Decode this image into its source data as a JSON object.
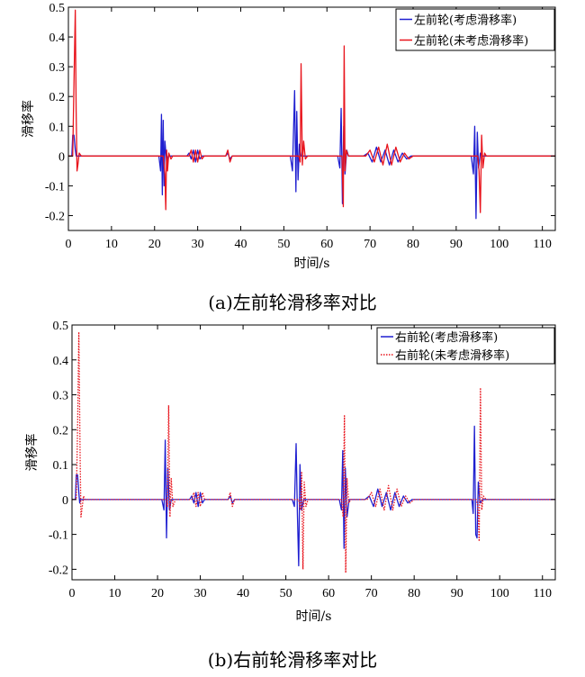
{
  "chart_data": [
    {
      "type": "line",
      "caption": "(a)左前轮滑移率对比",
      "xlabel": "时间/s",
      "ylabel": "滑移率",
      "xlim": [
        0,
        113
      ],
      "ylim": [
        -0.25,
        0.5
      ],
      "xticks": [
        0,
        10,
        20,
        30,
        40,
        50,
        60,
        70,
        80,
        90,
        100,
        110
      ],
      "yticks": [
        -0.2,
        -0.1,
        0,
        0.1,
        0.2,
        0.3,
        0.4,
        0.5
      ],
      "ytick_labels": [
        "-0.2",
        "-0.1",
        "0",
        "0.1",
        "0.2",
        "0.3",
        "0.4",
        "0.5"
      ],
      "grid": false,
      "legend_position": "top-right",
      "series": [
        {
          "name": "左前轮(考虑滑移率)",
          "color": "#1f1fd0",
          "style": "solid",
          "x": [
            0,
            0.8,
            1.0,
            1.3,
            1.6,
            1.8,
            2.0,
            2.5,
            3.0,
            21.0,
            21.4,
            21.6,
            21.8,
            22.0,
            22.2,
            22.4,
            22.8,
            23.2,
            27.5,
            28.0,
            28.5,
            29.0,
            29.5,
            30.0,
            30.5,
            31.0,
            36.5,
            37.0,
            37.5,
            38.0,
            51.5,
            52.0,
            52.5,
            52.8,
            53.0,
            53.3,
            53.6,
            54.0,
            55.0,
            62.5,
            63.0,
            63.3,
            63.6,
            63.9,
            64.2,
            64.6,
            65.0,
            68.5,
            69.5,
            70.5,
            71.5,
            72.5,
            73.5,
            74.5,
            75.5,
            76.5,
            77.5,
            78.5,
            79.5,
            93.5,
            94.0,
            94.3,
            94.6,
            94.9,
            95.2,
            95.6,
            96.0,
            113
          ],
          "y": [
            0,
            0,
            0.07,
            0.07,
            0.02,
            0,
            0,
            0,
            0,
            0,
            -0.05,
            0.14,
            -0.13,
            0.12,
            -0.1,
            0.05,
            -0.02,
            0,
            0,
            0.01,
            -0.01,
            0.02,
            -0.02,
            0.02,
            -0.01,
            0,
            0,
            0.01,
            -0.01,
            0,
            0,
            -0.05,
            0.22,
            -0.12,
            0.15,
            -0.08,
            0.04,
            0,
            0,
            0,
            -0.04,
            0.16,
            -0.16,
            0.1,
            -0.06,
            0.02,
            0,
            0,
            0.01,
            -0.02,
            0.03,
            -0.02,
            0.02,
            -0.03,
            0.02,
            -0.02,
            0.01,
            -0.01,
            0,
            0,
            -0.06,
            0.1,
            -0.21,
            0.08,
            -0.04,
            0.01,
            0,
            0
          ]
        },
        {
          "name": "左前轮(未考虑滑移率)",
          "color": "#e8141c",
          "style": "solid",
          "x": [
            0,
            1.0,
            1.3,
            1.6,
            1.8,
            2.0,
            2.2,
            2.5,
            3.0,
            4.0,
            22.0,
            22.4,
            22.6,
            22.8,
            23.0,
            23.3,
            23.8,
            24.2,
            28.0,
            28.5,
            29.0,
            29.5,
            30.0,
            30.5,
            31.0,
            31.5,
            36.5,
            37.0,
            37.5,
            38.0,
            53.5,
            53.8,
            54.0,
            54.3,
            54.6,
            55.0,
            55.5,
            63.5,
            63.8,
            64.0,
            64.2,
            64.5,
            65.0,
            69.0,
            70.0,
            71.0,
            72.0,
            73.0,
            74.0,
            75.0,
            76.0,
            77.0,
            78.0,
            79.0,
            80.0,
            95.0,
            95.3,
            95.6,
            95.9,
            96.2,
            96.6,
            97.0,
            113
          ],
          "y": [
            0,
            0,
            0.25,
            0.49,
            0.15,
            -0.05,
            -0.03,
            0.01,
            0,
            0,
            0,
            -0.06,
            -0.18,
            0.02,
            -0.05,
            0.01,
            -0.01,
            0,
            0,
            0.02,
            -0.02,
            0.02,
            -0.02,
            0.02,
            -0.01,
            0,
            0,
            0.02,
            -0.02,
            0,
            0,
            -0.02,
            0.31,
            -0.03,
            0.05,
            -0.01,
            0,
            0,
            -0.17,
            0.37,
            -0.05,
            0.02,
            0,
            0,
            0.02,
            -0.02,
            0.03,
            -0.03,
            0.04,
            -0.03,
            0.03,
            -0.02,
            0.01,
            -0.01,
            0,
            0,
            -0.05,
            -0.19,
            0.07,
            -0.04,
            0.01,
            0,
            0
          ]
        }
      ]
    },
    {
      "type": "line",
      "caption": "(b)右前轮滑移率对比",
      "xlabel": "时间/s",
      "ylabel": "滑移率",
      "xlim": [
        0,
        113
      ],
      "ylim": [
        -0.23,
        0.5
      ],
      "xticks": [
        0,
        10,
        20,
        30,
        40,
        50,
        60,
        70,
        80,
        90,
        100,
        110
      ],
      "yticks": [
        -0.2,
        -0.1,
        0,
        0.1,
        0.2,
        0.3,
        0.4,
        0.5
      ],
      "ytick_labels": [
        "-0.2",
        "-0.1",
        "0",
        "0.1",
        "0.2",
        "0.3",
        "0.4",
        "0.5"
      ],
      "grid": false,
      "legend_position": "top-right",
      "series": [
        {
          "name": "右前轮(考虑滑移率)",
          "color": "#1f1fd0",
          "style": "solid",
          "x": [
            0,
            0.8,
            1.0,
            1.3,
            1.6,
            1.8,
            2.0,
            3.0,
            21.0,
            21.5,
            21.8,
            22.1,
            22.4,
            22.8,
            23.2,
            27.5,
            28.0,
            28.5,
            29.0,
            29.5,
            30.0,
            30.5,
            31.0,
            36.5,
            37.0,
            37.5,
            38.0,
            51.5,
            52.0,
            52.4,
            52.7,
            53.0,
            53.3,
            53.7,
            54.2,
            62.5,
            63.0,
            63.3,
            63.6,
            63.9,
            64.3,
            64.8,
            68.5,
            69.5,
            70.5,
            71.5,
            72.5,
            73.5,
            74.5,
            75.5,
            76.5,
            77.5,
            78.5,
            79.5,
            93.5,
            93.8,
            94.1,
            94.4,
            94.7,
            95.0,
            95.4,
            96.0,
            113
          ],
          "y": [
            0,
            0,
            0.07,
            0.07,
            0.02,
            -0.01,
            0,
            0,
            0,
            -0.03,
            0.17,
            -0.11,
            0.09,
            -0.03,
            0,
            0,
            0.01,
            -0.01,
            0.02,
            -0.02,
            0.02,
            -0.01,
            0,
            0,
            0.01,
            -0.01,
            0,
            0,
            -0.02,
            0.16,
            -0.04,
            -0.19,
            0.1,
            -0.03,
            0,
            0,
            -0.03,
            0.14,
            -0.14,
            0.09,
            -0.05,
            0,
            0,
            0.01,
            -0.02,
            0.03,
            -0.02,
            0.02,
            -0.03,
            0.02,
            -0.02,
            0.01,
            -0.01,
            0,
            0,
            -0.04,
            0.21,
            -0.1,
            -0.11,
            0.05,
            -0.01,
            0,
            0
          ]
        },
        {
          "name": "右前轮(未考虑滑移率)",
          "color": "#e8141c",
          "style": "dotted",
          "x": [
            0,
            1.0,
            1.3,
            1.6,
            1.9,
            2.1,
            2.4,
            2.7,
            3.0,
            4.0,
            22.0,
            22.3,
            22.6,
            22.9,
            23.2,
            23.6,
            24.2,
            28.0,
            28.5,
            29.0,
            29.5,
            30.0,
            30.5,
            31.0,
            36.5,
            37.0,
            37.5,
            38.0,
            53.0,
            53.4,
            53.7,
            54.0,
            54.3,
            54.7,
            55.2,
            63.0,
            63.4,
            63.7,
            64.0,
            64.3,
            64.7,
            65.2,
            69.0,
            70.0,
            71.0,
            72.0,
            73.0,
            74.0,
            75.0,
            76.0,
            77.0,
            78.0,
            79.0,
            80.0,
            94.5,
            94.9,
            95.2,
            95.5,
            95.8,
            96.2,
            96.8,
            113
          ],
          "y": [
            0,
            0,
            0.2,
            0.48,
            0.12,
            -0.05,
            -0.02,
            0.01,
            0,
            0,
            0,
            -0.02,
            0.27,
            -0.05,
            0.06,
            -0.02,
            0,
            0,
            0.02,
            -0.02,
            0.02,
            -0.02,
            0.02,
            0,
            0,
            0.02,
            -0.02,
            0,
            0,
            -0.03,
            0.08,
            -0.2,
            0.05,
            -0.02,
            0,
            0,
            -0.05,
            0.24,
            -0.21,
            0.06,
            -0.01,
            0,
            0,
            0.02,
            -0.02,
            0.03,
            -0.03,
            0.04,
            -0.03,
            0.03,
            -0.02,
            0.01,
            -0.01,
            0,
            0,
            -0.02,
            -0.12,
            0.32,
            -0.03,
            0.01,
            0,
            0
          ]
        }
      ]
    }
  ]
}
